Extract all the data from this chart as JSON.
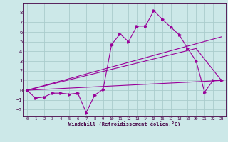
{
  "xlabel": "Windchill (Refroidissement éolien,°C)",
  "bg_color": "#cce8e8",
  "grid_color": "#aacccc",
  "line_color": "#990099",
  "xlim": [
    -0.5,
    23.5
  ],
  "ylim": [
    -2.7,
    9.0
  ],
  "xticks": [
    0,
    1,
    2,
    3,
    4,
    5,
    6,
    7,
    8,
    9,
    10,
    11,
    12,
    13,
    14,
    15,
    16,
    17,
    18,
    19,
    20,
    21,
    22,
    23
  ],
  "yticks": [
    -2,
    -1,
    0,
    1,
    2,
    3,
    4,
    5,
    6,
    7,
    8
  ],
  "series1_x": [
    0,
    1,
    2,
    3,
    4,
    5,
    6,
    7,
    8,
    9,
    10,
    11,
    12,
    13,
    14,
    15,
    16,
    17,
    18,
    19,
    20,
    21,
    22,
    23
  ],
  "series1_y": [
    0.0,
    -0.8,
    -0.7,
    -0.3,
    -0.3,
    -0.4,
    -0.3,
    -2.3,
    -0.5,
    0.1,
    4.7,
    5.8,
    5.0,
    6.6,
    6.6,
    8.2,
    7.3,
    6.5,
    5.7,
    4.3,
    3.0,
    -0.2,
    1.0,
    1.0
  ],
  "line1_x": [
    0,
    23
  ],
  "line1_y": [
    0.0,
    1.0
  ],
  "line2_x": [
    0,
    20,
    23
  ],
  "line2_y": [
    0.0,
    4.3,
    1.0
  ],
  "line3_x": [
    0,
    23
  ],
  "line3_y": [
    0.0,
    5.5
  ]
}
